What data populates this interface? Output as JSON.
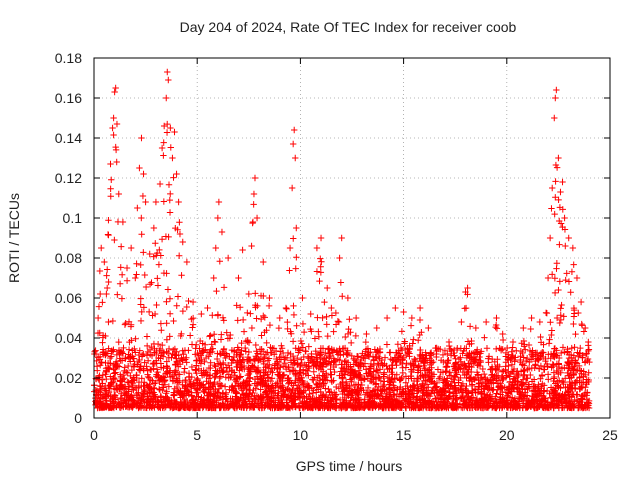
{
  "chart_data": {
    "type": "scatter",
    "title": "Day 204 of 2024, Rate Of TEC Index for receiver coob",
    "xlabel": "GPS time / hours",
    "ylabel": "ROTI / TECUs",
    "xlim": [
      0,
      25
    ],
    "ylim": [
      0,
      0.18
    ],
    "x_ticks": [
      0,
      5,
      10,
      15,
      20,
      25
    ],
    "x_tick_labels": [
      "0",
      "5",
      "10",
      "15",
      "20",
      "25"
    ],
    "y_ticks": [
      0,
      0.02,
      0.04,
      0.06,
      0.08,
      0.1,
      0.12,
      0.14,
      0.16,
      0.18
    ],
    "y_tick_labels": [
      "0",
      "0.02",
      "0.04",
      "0.06",
      "0.08",
      "0.1",
      "0.12",
      "0.14",
      "0.16",
      "0.18"
    ],
    "grid": true,
    "marker": "+",
    "color": "#ff0000",
    "series": [
      {
        "name": "ROTI",
        "points": [
          [
            0.1,
            0.032
          ],
          [
            0.2,
            0.05
          ],
          [
            0.3,
            0.062
          ],
          [
            0.35,
            0.085
          ],
          [
            0.5,
            0.078
          ],
          [
            0.6,
            0.062
          ],
          [
            0.7,
            0.048
          ],
          [
            0.8,
            0.127
          ],
          [
            0.9,
            0.145
          ],
          [
            0.95,
            0.15
          ],
          [
            1.0,
            0.163
          ],
          [
            1.05,
            0.165
          ],
          [
            1.1,
            0.128
          ],
          [
            1.2,
            0.112
          ],
          [
            1.4,
            0.098
          ],
          [
            1.6,
            0.075
          ],
          [
            1.8,
            0.085
          ],
          [
            2.0,
            0.07
          ],
          [
            2.1,
            0.105
          ],
          [
            2.2,
            0.125
          ],
          [
            2.3,
            0.14
          ],
          [
            2.4,
            0.122
          ],
          [
            2.5,
            0.108
          ],
          [
            2.7,
            0.082
          ],
          [
            2.9,
            0.095
          ],
          [
            3.0,
            0.108
          ],
          [
            3.2,
            0.117
          ],
          [
            3.3,
            0.135
          ],
          [
            3.4,
            0.146
          ],
          [
            3.5,
            0.16
          ],
          [
            3.55,
            0.173
          ],
          [
            3.6,
            0.169
          ],
          [
            3.7,
            0.145
          ],
          [
            3.8,
            0.13
          ],
          [
            3.9,
            0.143
          ],
          [
            4.0,
            0.122
          ],
          [
            4.1,
            0.108
          ],
          [
            4.3,
            0.088
          ],
          [
            4.5,
            0.078
          ],
          [
            4.8,
            0.058
          ],
          [
            5.2,
            0.052
          ],
          [
            5.5,
            0.055
          ],
          [
            5.8,
            0.07
          ],
          [
            5.9,
            0.085
          ],
          [
            6.0,
            0.1
          ],
          [
            6.05,
            0.108
          ],
          [
            6.2,
            0.093
          ],
          [
            6.5,
            0.08
          ],
          [
            7.0,
            0.07
          ],
          [
            7.2,
            0.084
          ],
          [
            7.5,
            0.062
          ],
          [
            7.7,
            0.098
          ],
          [
            7.75,
            0.112
          ],
          [
            7.8,
            0.12
          ],
          [
            7.9,
            0.1
          ],
          [
            8.2,
            0.078
          ],
          [
            8.5,
            0.06
          ],
          [
            9.0,
            0.05
          ],
          [
            9.3,
            0.055
          ],
          [
            9.5,
            0.085
          ],
          [
            9.6,
            0.115
          ],
          [
            9.65,
            0.137
          ],
          [
            9.7,
            0.144
          ],
          [
            9.75,
            0.13
          ],
          [
            9.8,
            0.095
          ],
          [
            10.1,
            0.06
          ],
          [
            10.5,
            0.052
          ],
          [
            10.8,
            0.085
          ],
          [
            11.0,
            0.09
          ],
          [
            11.3,
            0.065
          ],
          [
            11.5,
            0.055
          ],
          [
            11.9,
            0.08
          ],
          [
            12.0,
            0.09
          ],
          [
            12.3,
            0.06
          ],
          [
            12.7,
            0.05
          ],
          [
            13.2,
            0.042
          ],
          [
            13.7,
            0.045
          ],
          [
            14.2,
            0.05
          ],
          [
            14.6,
            0.055
          ],
          [
            15.0,
            0.053
          ],
          [
            15.4,
            0.05
          ],
          [
            15.8,
            0.055
          ],
          [
            16.2,
            0.045
          ],
          [
            16.6,
            0.035
          ],
          [
            17.2,
            0.038
          ],
          [
            17.8,
            0.048
          ],
          [
            18.0,
            0.063
          ],
          [
            18.1,
            0.065
          ],
          [
            18.5,
            0.045
          ],
          [
            19.0,
            0.048
          ],
          [
            19.5,
            0.05
          ],
          [
            19.8,
            0.042
          ],
          [
            20.3,
            0.038
          ],
          [
            20.8,
            0.045
          ],
          [
            21.2,
            0.05
          ],
          [
            21.6,
            0.048
          ],
          [
            22.0,
            0.07
          ],
          [
            22.1,
            0.09
          ],
          [
            22.2,
            0.115
          ],
          [
            22.3,
            0.15
          ],
          [
            22.35,
            0.16
          ],
          [
            22.4,
            0.164
          ],
          [
            22.5,
            0.13
          ],
          [
            22.6,
            0.113
          ],
          [
            22.7,
            0.118
          ],
          [
            22.8,
            0.1
          ],
          [
            23.0,
            0.09
          ],
          [
            23.2,
            0.085
          ],
          [
            23.4,
            0.07
          ],
          [
            23.6,
            0.058
          ],
          [
            23.8,
            0.045
          ],
          [
            23.95,
            0.038
          ]
        ],
        "baseline_band": [
          0.005,
          0.035
        ],
        "dense_x_range": [
          0.0,
          24.0
        ]
      }
    ]
  }
}
